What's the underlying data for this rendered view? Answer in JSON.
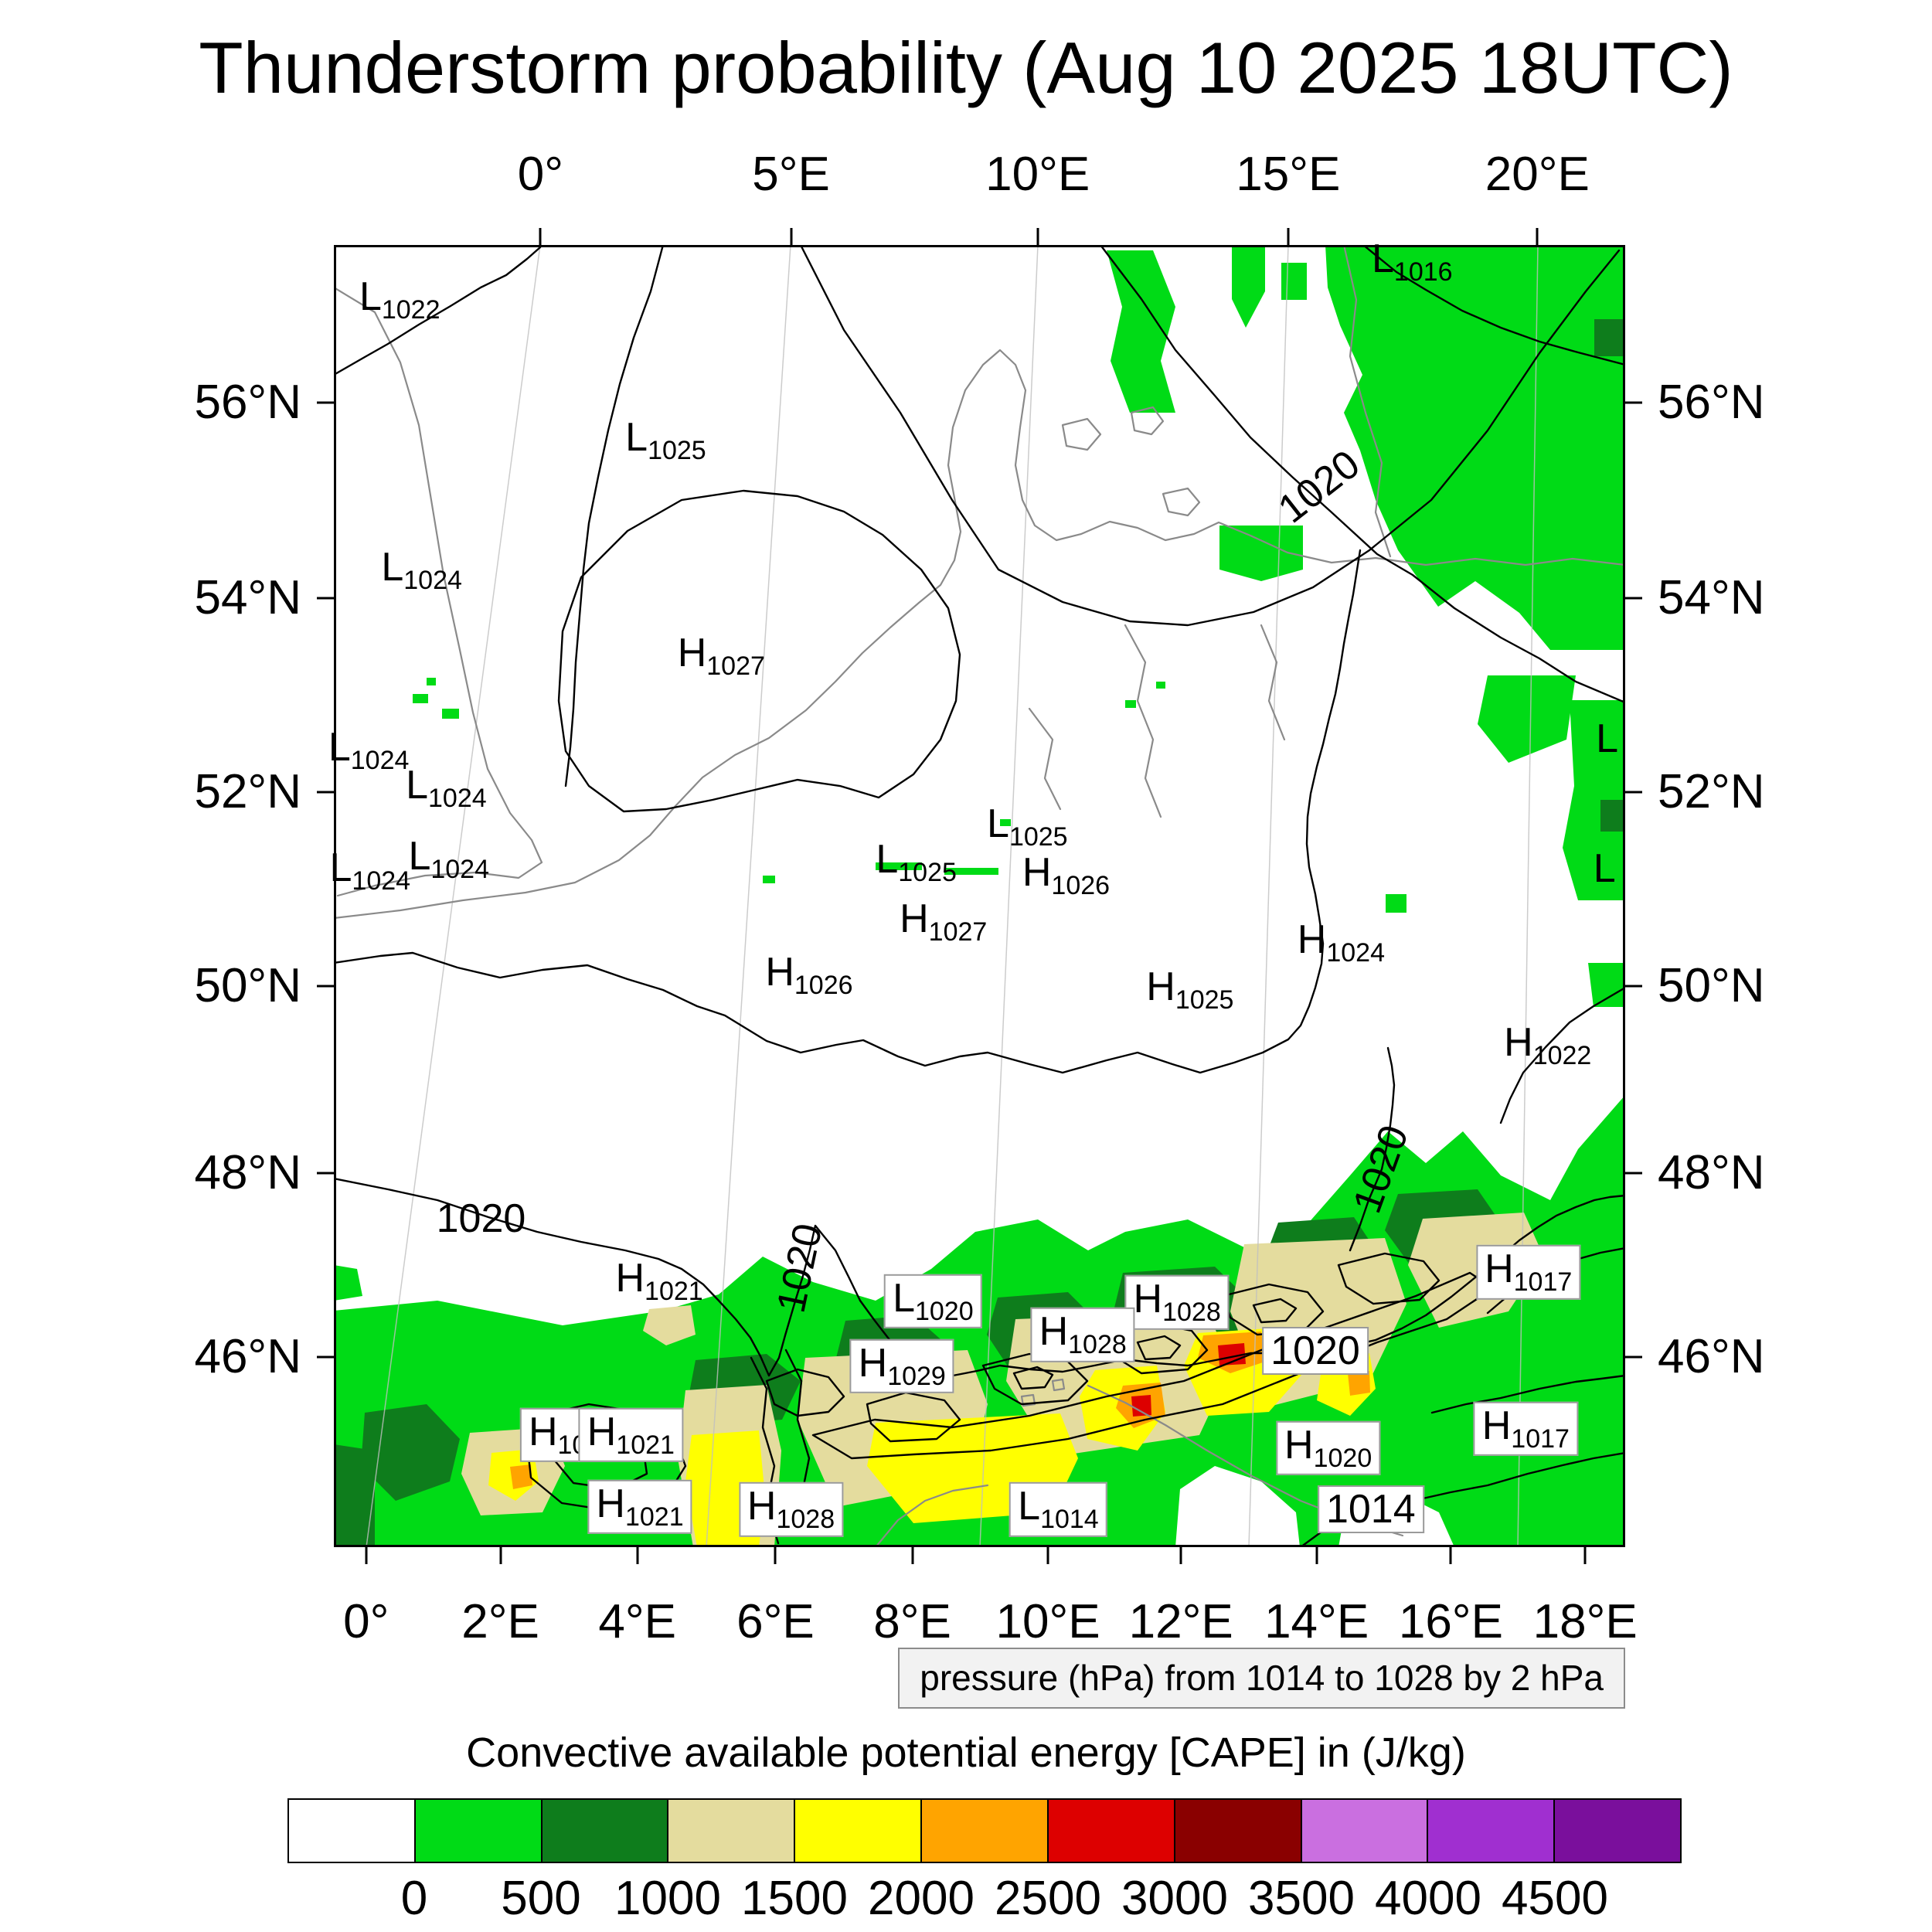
{
  "title": "Thunderstorm probability (Aug 10 2025 18UTC)",
  "pressure_note": "pressure (hPa) from 1014 to 1028 by 2 hPa",
  "colorbar": {
    "title": "Convective available potential energy [CAPE] in (J/kg)",
    "tick_labels": [
      "0",
      "500",
      "1000",
      "1500",
      "2000",
      "2500",
      "3000",
      "3500",
      "4000",
      "4500"
    ],
    "colors": [
      "#ffffff",
      "#00db16",
      "#0e7d1c",
      "#e4dc9e",
      "#ffff00",
      "#ffa400",
      "#dd0000",
      "#8a0000",
      "#ca6fe0",
      "#a02fd0",
      "#7a0f9c"
    ]
  },
  "axes": {
    "top": [
      {
        "label": "0°",
        "f": 0.16
      },
      {
        "label": "5°E",
        "f": 0.354
      },
      {
        "label": "10°E",
        "f": 0.545
      },
      {
        "label": "15°E",
        "f": 0.739
      },
      {
        "label": "20°E",
        "f": 0.932
      }
    ],
    "bottom": [
      {
        "label": "0°",
        "f": 0.025
      },
      {
        "label": "2°E",
        "f": 0.129
      },
      {
        "label": "4°E",
        "f": 0.235
      },
      {
        "label": "6°E",
        "f": 0.342
      },
      {
        "label": "8°E",
        "f": 0.448
      },
      {
        "label": "10°E",
        "f": 0.553
      },
      {
        "label": "12°E",
        "f": 0.656
      },
      {
        "label": "14°E",
        "f": 0.761
      },
      {
        "label": "16°E",
        "f": 0.865
      },
      {
        "label": "18°E",
        "f": 0.969
      }
    ],
    "left": [
      {
        "label": "56°N",
        "f": 0.121
      },
      {
        "label": "54°N",
        "f": 0.271
      },
      {
        "label": "52°N",
        "f": 0.42
      },
      {
        "label": "50°N",
        "f": 0.569
      },
      {
        "label": "48°N",
        "f": 0.713
      },
      {
        "label": "46°N",
        "f": 0.854
      }
    ],
    "right": [
      {
        "label": "56°N",
        "f": 0.121
      },
      {
        "label": "54°N",
        "f": 0.271
      },
      {
        "label": "52°N",
        "f": 0.42
      },
      {
        "label": "50°N",
        "f": 0.569
      },
      {
        "label": "48°N",
        "f": 0.713
      },
      {
        "label": "46°N",
        "f": 0.854
      }
    ]
  },
  "pressure_centers": [
    {
      "kind": "L",
      "value": "1022",
      "fx": 0.051,
      "fy": 0.042,
      "boxed": false
    },
    {
      "kind": "L",
      "value": "1016",
      "fx": 0.835,
      "fy": 0.013,
      "boxed": false
    },
    {
      "kind": "L",
      "value": "1025",
      "fx": 0.257,
      "fy": 0.15,
      "boxed": false
    },
    {
      "kind": "L",
      "value": "1024",
      "fx": 0.068,
      "fy": 0.25,
      "boxed": false
    },
    {
      "kind": "H",
      "value": "1027",
      "fx": 0.3,
      "fy": 0.316,
      "boxed": false
    },
    {
      "kind": "L",
      "value": "1024",
      "fx": 0.027,
      "fy": 0.388,
      "boxed": false
    },
    {
      "kind": "L",
      "value": "1024",
      "fx": 0.087,
      "fy": 0.417,
      "boxed": false
    },
    {
      "kind": "L",
      "value": "1024",
      "fx": 0.028,
      "fy": 0.481,
      "boxed": false
    },
    {
      "kind": "L",
      "value": "1024",
      "fx": 0.089,
      "fy": 0.472,
      "boxed": false
    },
    {
      "kind": "L",
      "value": "1025",
      "fx": 0.537,
      "fy": 0.447,
      "boxed": false
    },
    {
      "kind": "L",
      "value": "1025",
      "fx": 0.451,
      "fy": 0.474,
      "boxed": false
    },
    {
      "kind": "H",
      "value": "1026",
      "fx": 0.567,
      "fy": 0.484,
      "boxed": false
    },
    {
      "kind": "H",
      "value": "1027",
      "fx": 0.472,
      "fy": 0.52,
      "boxed": false
    },
    {
      "kind": "H",
      "value": "1026",
      "fx": 0.368,
      "fy": 0.561,
      "boxed": false
    },
    {
      "kind": "H",
      "value": "1025",
      "fx": 0.663,
      "fy": 0.572,
      "boxed": false
    },
    {
      "kind": "H",
      "value": "1024",
      "fx": 0.78,
      "fy": 0.536,
      "boxed": false
    },
    {
      "kind": "H",
      "value": "1022",
      "fx": 0.94,
      "fy": 0.615,
      "boxed": false
    },
    {
      "kind": "H",
      "value": "1021",
      "fx": 0.252,
      "fy": 0.796,
      "boxed": false
    },
    {
      "kind": "L",
      "value": "1020",
      "fx": 0.464,
      "fy": 0.811,
      "boxed": true
    },
    {
      "kind": "H",
      "value": "1028",
      "fx": 0.653,
      "fy": 0.812,
      "boxed": true
    },
    {
      "kind": "H",
      "value": "1028",
      "fx": 0.58,
      "fy": 0.837,
      "boxed": true
    },
    {
      "kind": "H",
      "value": "1029",
      "fx": 0.44,
      "fy": 0.861,
      "boxed": true
    },
    {
      "kind": "H",
      "value": "1017",
      "fx": 0.925,
      "fy": 0.789,
      "boxed": true
    },
    {
      "kind": "H",
      "value": "102",
      "fx": 0.179,
      "fy": 0.914,
      "boxed": true
    },
    {
      "kind": "H",
      "value": "1021",
      "fx": 0.23,
      "fy": 0.914,
      "boxed": true
    },
    {
      "kind": "H",
      "value": "1017",
      "fx": 0.923,
      "fy": 0.909,
      "boxed": true
    },
    {
      "kind": "H",
      "value": "1020",
      "fx": 0.77,
      "fy": 0.924,
      "boxed": true
    },
    {
      "kind": "H",
      "value": "1021",
      "fx": 0.237,
      "fy": 0.969,
      "boxed": true
    },
    {
      "kind": "H",
      "value": "1028",
      "fx": 0.354,
      "fy": 0.971,
      "boxed": true
    },
    {
      "kind": "L",
      "value": "1014",
      "fx": 0.561,
      "fy": 0.971,
      "boxed": true
    }
  ],
  "contour_labels": [
    {
      "text": "1020",
      "fx": 0.763,
      "fy": 0.186,
      "rot": -38,
      "boxed": false
    },
    {
      "text": "1020",
      "fx": 0.114,
      "fy": 0.748,
      "rot": 0,
      "boxed": false
    },
    {
      "text": "1020",
      "fx": 0.361,
      "fy": 0.786,
      "rot": -78,
      "boxed": false
    },
    {
      "text": "1020",
      "fx": 0.811,
      "fy": 0.71,
      "rot": -70,
      "boxed": false
    },
    {
      "text": "1020",
      "fx": 0.76,
      "fy": 0.849,
      "rot": 0,
      "boxed": true
    },
    {
      "text": "1014",
      "fx": 0.803,
      "fy": 0.971,
      "rot": 0,
      "boxed": true
    },
    {
      "text": "L",
      "fx": 0.986,
      "fy": 0.379,
      "rot": 0,
      "boxed": false
    },
    {
      "text": "L",
      "fx": 0.984,
      "fy": 0.479,
      "rot": 0,
      "boxed": false
    }
  ]
}
